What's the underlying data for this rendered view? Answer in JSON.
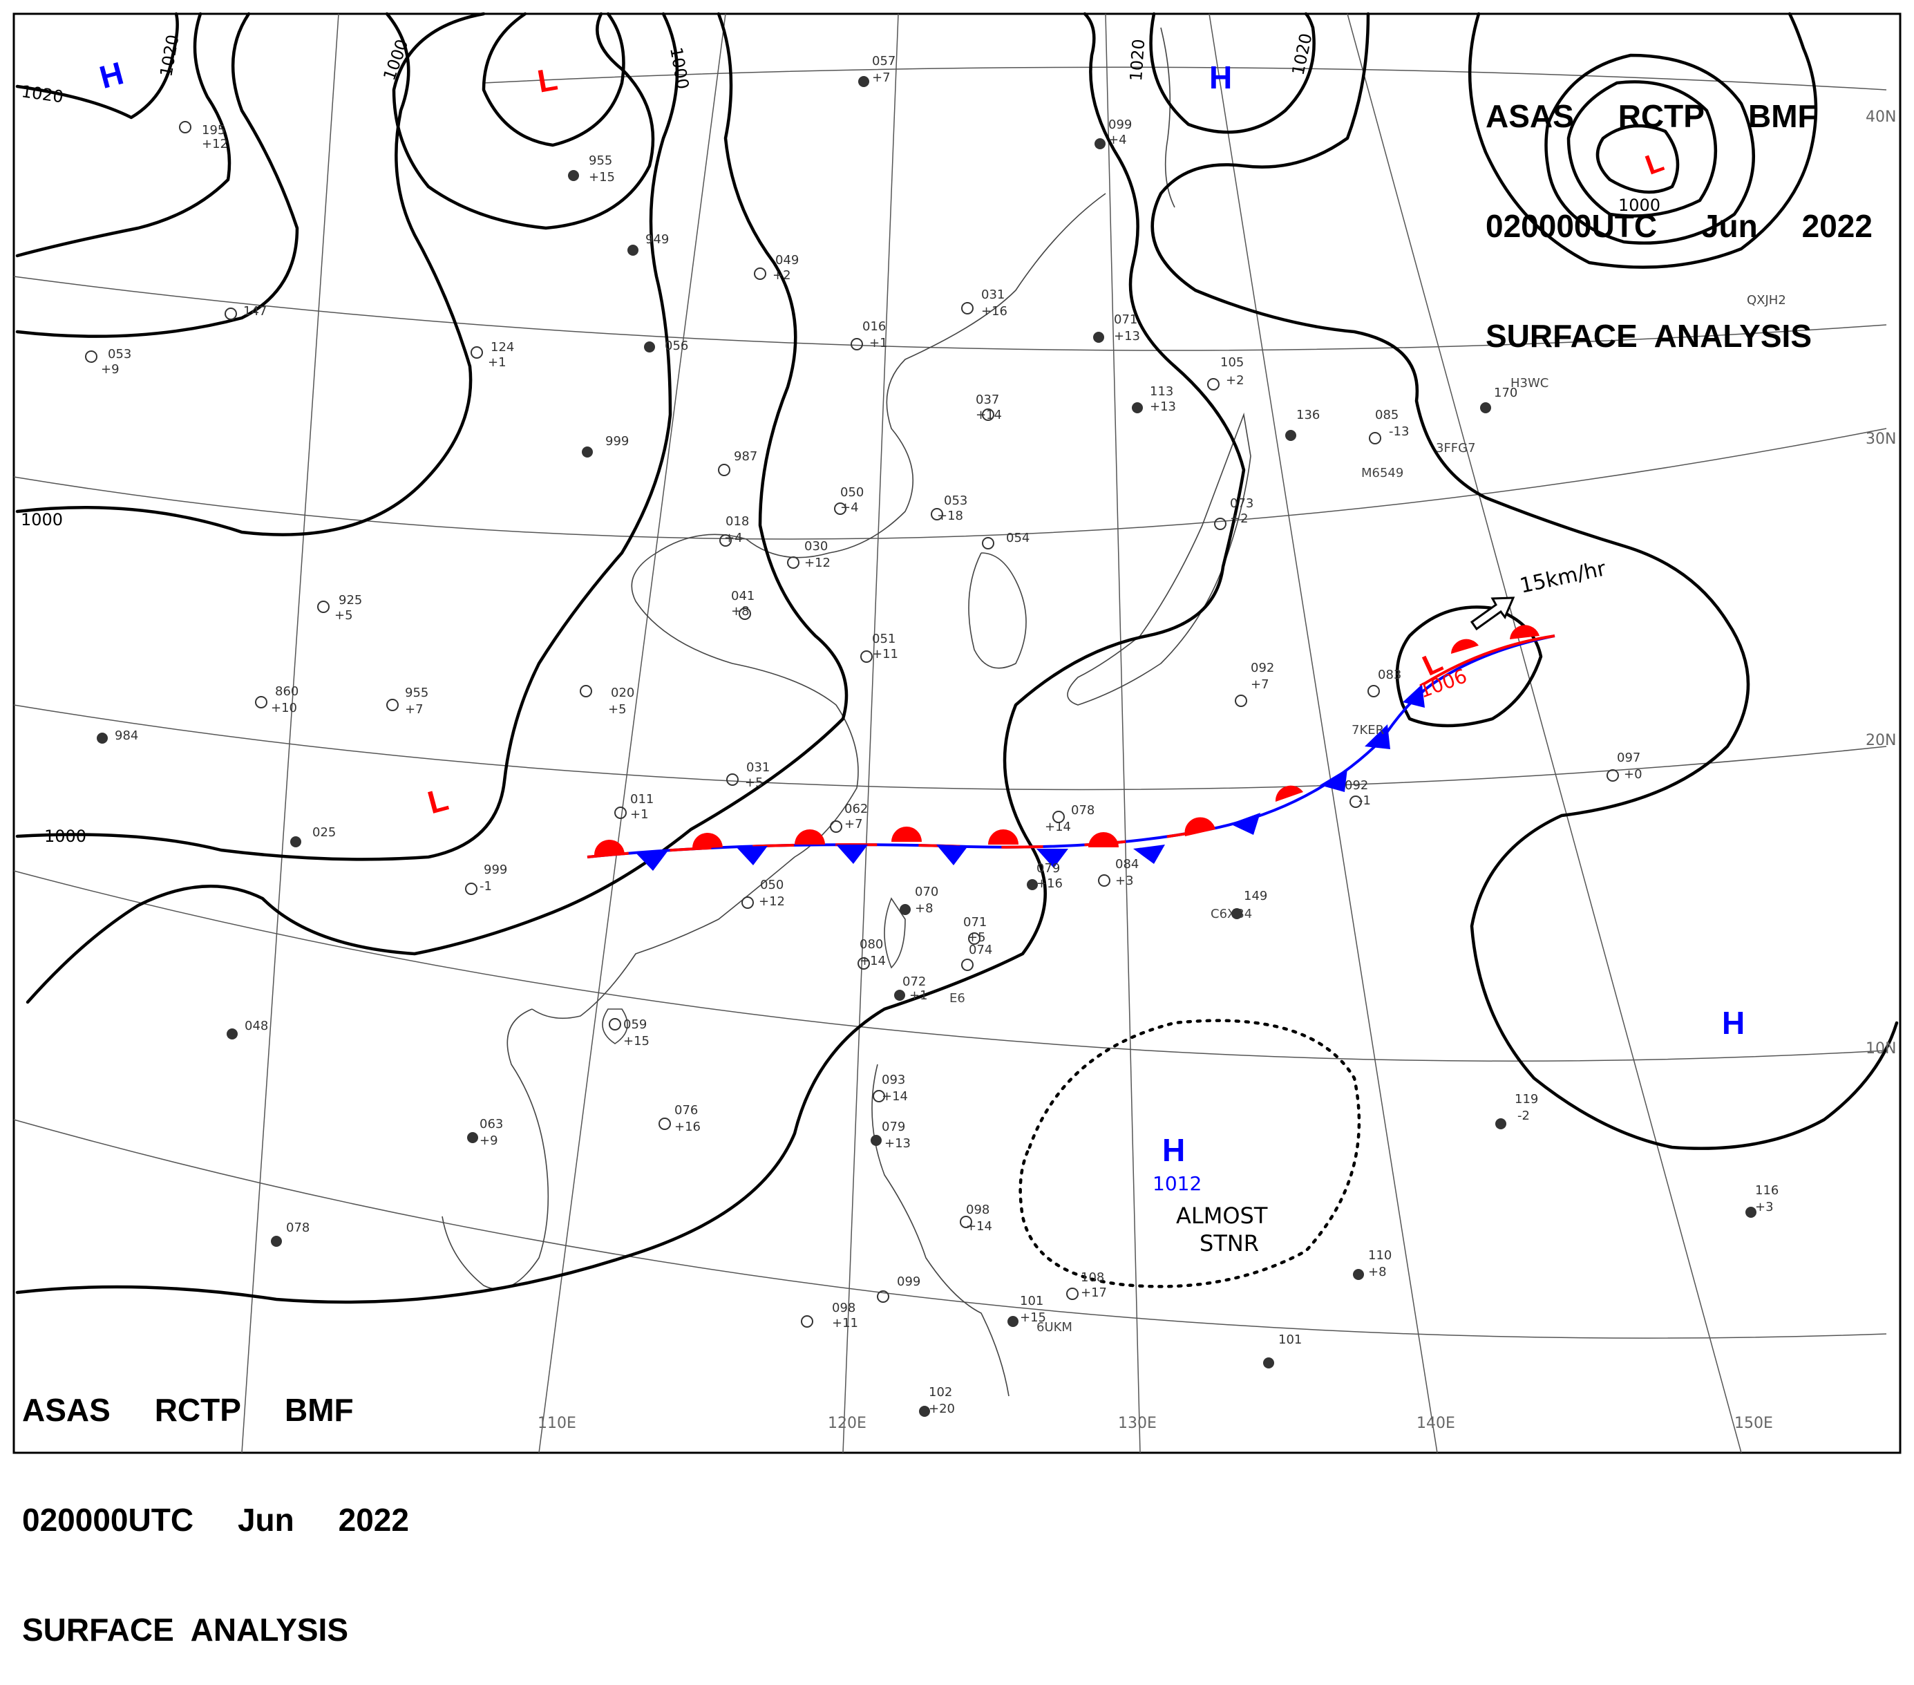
{
  "header_top": {
    "line1": "ASAS     RCTP     BMF",
    "line2": "020000UTC     Jun     2022",
    "line3": "SURFACE  ANALYSIS"
  },
  "header_bottom": {
    "line1": "ASAS     RCTP     BMF",
    "line2": "020000UTC     Jun     2022",
    "line3": "SURFACE  ANALYSIS"
  },
  "longitude_labels": [
    "110E",
    "120E",
    "130E",
    "140E",
    "150E"
  ],
  "latitude_labels": [
    "40N",
    "30N",
    "20N",
    "10N"
  ],
  "isobar_labels": [
    "1020",
    "1020",
    "1000",
    "1000",
    "1020",
    "1020",
    "1000",
    "1000",
    "1000",
    "1000",
    "1012"
  ],
  "pressure_centers": [
    {
      "type": "H",
      "color": "#0000ff"
    },
    {
      "type": "L",
      "color": "#ff0000"
    },
    {
      "type": "H",
      "color": "#0000ff"
    },
    {
      "type": "L",
      "color": "#ff0000",
      "value": "1000"
    },
    {
      "type": "L",
      "color": "#ff0000"
    },
    {
      "type": "L",
      "color": "#ff0000",
      "value": "1006"
    },
    {
      "type": "H",
      "color": "#0000ff"
    },
    {
      "type": "H",
      "color": "#0000ff",
      "value": "1012"
    }
  ],
  "motion_label": "15km/hr",
  "stationary_note": [
    "ALMOST",
    "STNR"
  ],
  "front": {
    "type": "stationary",
    "warm_color": "#ff0000",
    "cold_color": "#0000ff"
  },
  "ship_ids": [
    "QXJH2",
    "H3WC",
    "M6549",
    "3FFG7",
    "7KER",
    "C6XB4",
    "6UKM",
    "E6"
  ],
  "station_values": [
    "195",
    "+12",
    "955",
    "+15",
    "949",
    "056",
    "031",
    "+16",
    "071",
    "+13",
    "113",
    "+13",
    "105",
    "+2",
    "136",
    "085",
    "-13",
    "170",
    "073",
    "+2",
    "999",
    "987",
    "018",
    "+4",
    "030",
    "+12",
    "050",
    "+4",
    "053",
    "+18",
    "054",
    "041",
    "+8",
    "051",
    "+11",
    "020",
    "+5",
    "955",
    "+7",
    "860",
    "+10",
    "984",
    "925",
    "+5",
    "031",
    "+5",
    "011",
    "+1",
    "062",
    "+7",
    "078",
    "+14",
    "079",
    "+16",
    "084",
    "+3",
    "092",
    "+7",
    "083",
    "092",
    "-1",
    "097",
    "+0",
    "149",
    "050",
    "+12",
    "070",
    "+8",
    "071",
    "+5",
    "074",
    "080",
    "+14",
    "072",
    "+1",
    "059",
    "+15",
    "048",
    "063",
    "+9",
    "076",
    "+16",
    "078",
    "093",
    "+14",
    "079",
    "+13",
    "098",
    "+14",
    "099",
    "098",
    "+11",
    "101",
    "+15",
    "108",
    "+17",
    "110",
    "+8",
    "101",
    "102",
    "+20",
    "119",
    "-2",
    "116",
    "+3",
    "025",
    "999",
    "-1",
    "037",
    "+14",
    "016",
    "+1",
    "147",
    "053",
    "+9",
    "124",
    "+1",
    "057",
    "+7",
    "049",
    "+2",
    "099",
    "+4"
  ]
}
